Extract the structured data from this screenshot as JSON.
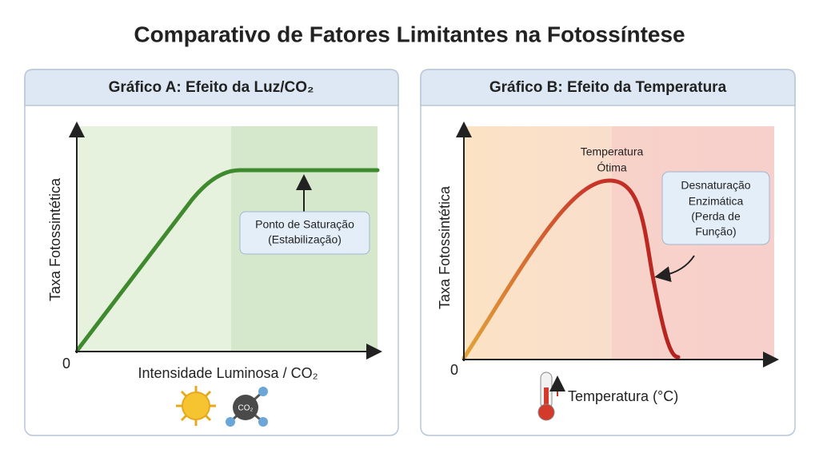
{
  "title": "Comparativo de Fatores Limitantes na Fotossíntese",
  "panels": [
    {
      "header": "Gráfico A: Efeito da Luz/CO₂",
      "y_label": "Taxa Fotossintética",
      "origin": 0,
      "x_label": "Intensidade Luminosa / CO₂",
      "callout": [
        "Ponto de Saturação",
        "(Estabilização)"
      ],
      "icon_label": "CO₂"
    },
    {
      "header": "Gráfico B: Efeito da Temperatura",
      "y_label": "Taxa Fotossintética",
      "origin": 0,
      "peak_label": [
        "Temperatura",
        "Ótima"
      ],
      "callout": [
        "Desnaturação",
        "Enzimática",
        "(Perda de",
        "Função)"
      ],
      "x_label": "Temperatura (°C)"
    }
  ]
}
